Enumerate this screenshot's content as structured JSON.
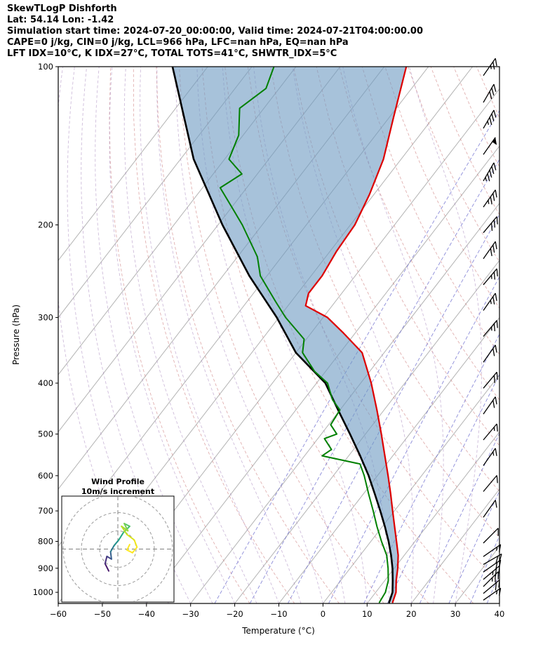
{
  "header": {
    "title": "SkewTLogP Dishforth",
    "location": "Lat: 54.14   Lon: -1.42",
    "times": "Simulation start time: 2024-07-20_00:00:00, Valid time: 2024-07-21T04:00:00.00",
    "indices1": "CAPE=0 j/kg, CIN=0 j/kg, LCL=966 hPa, LFC=nan hPa, EQ=nan hPa",
    "indices2": "LFT IDX=10°C, K IDX=27°C, TOTAL TOTS=41°C, SHWTR_IDX=5°C"
  },
  "chart_data": {
    "type": "skewt_logp_sounding",
    "station": "Dishforth",
    "lat": 54.14,
    "lon": -1.42,
    "xlabel": "Temperature (°C)",
    "ylabel": "Pressure (hPa)",
    "x_ticks": [
      -60,
      -50,
      -40,
      -30,
      -20,
      -10,
      0,
      10,
      20,
      30,
      40
    ],
    "x_tick_labels": [
      "−60",
      "−50",
      "−40",
      "−30",
      "−20",
      "−10",
      "0",
      "10",
      "20",
      "30",
      "40"
    ],
    "y_ticks": [
      100,
      200,
      300,
      400,
      500,
      600,
      700,
      800,
      900,
      1000
    ],
    "y_tick_labels": [
      "100",
      "200",
      "300",
      "400",
      "500",
      "600",
      "700",
      "800",
      "900",
      "1000"
    ],
    "x_range_c": [
      -60,
      40
    ],
    "pressure_range_hpa": [
      100,
      1050
    ],
    "y_scale": "log",
    "indices": {
      "cape_j_kg": 0,
      "cin_j_kg": 0,
      "lcl_hpa": 966,
      "lfc_hpa": "nan",
      "eq_hpa": "nan",
      "lifted_index_c": 10,
      "k_index_c": 27,
      "total_totals_c": 41,
      "showalter_index_c": 5
    },
    "temperature_profile": [
      [
        1045,
        15.6
      ],
      [
        1000,
        14.6
      ],
      [
        950,
        12.6
      ],
      [
        900,
        10.8
      ],
      [
        850,
        8.6
      ],
      [
        800,
        5.8
      ],
      [
        750,
        2.8
      ],
      [
        700,
        -0.4
      ],
      [
        650,
        -3.8
      ],
      [
        600,
        -7.6
      ],
      [
        550,
        -11.8
      ],
      [
        500,
        -16.4
      ],
      [
        450,
        -21.6
      ],
      [
        400,
        -27.6
      ],
      [
        350,
        -35.0
      ],
      [
        320,
        -43.0
      ],
      [
        300,
        -49.0
      ],
      [
        285,
        -56.0
      ],
      [
        270,
        -57.5
      ],
      [
        250,
        -57.5
      ],
      [
        225,
        -58.5
      ],
      [
        200,
        -59.0
      ],
      [
        175,
        -61.0
      ],
      [
        150,
        -64.0
      ],
      [
        125,
        -69.0
      ],
      [
        100,
        -75.0
      ]
    ],
    "dewpoint_profile": [
      [
        1045,
        12.6
      ],
      [
        1000,
        12.2
      ],
      [
        950,
        10.8
      ],
      [
        900,
        8.6
      ],
      [
        850,
        6.0
      ],
      [
        800,
        2.4
      ],
      [
        750,
        -1.2
      ],
      [
        700,
        -4.8
      ],
      [
        650,
        -8.8
      ],
      [
        600,
        -13.0
      ],
      [
        570,
        -16.0
      ],
      [
        550,
        -26.0
      ],
      [
        535,
        -25.0
      ],
      [
        510,
        -28.5
      ],
      [
        500,
        -26.5
      ],
      [
        480,
        -29.5
      ],
      [
        450,
        -30.0
      ],
      [
        430,
        -33.5
      ],
      [
        400,
        -37.5
      ],
      [
        380,
        -42.5
      ],
      [
        350,
        -48.5
      ],
      [
        330,
        -50.5
      ],
      [
        300,
        -58.5
      ],
      [
        280,
        -63.5
      ],
      [
        250,
        -71.5
      ],
      [
        230,
        -75.5
      ],
      [
        200,
        -84.5
      ],
      [
        185,
        -90.0
      ],
      [
        170,
        -96.0
      ],
      [
        160,
        -93.5
      ],
      [
        150,
        -99.0
      ],
      [
        135,
        -101.0
      ],
      [
        120,
        -105.5
      ],
      [
        110,
        -103.0
      ],
      [
        100,
        -105.0
      ]
    ],
    "parcel_profile": [
      [
        1045,
        14.8
      ],
      [
        1000,
        13.8
      ],
      [
        950,
        11.8
      ],
      [
        900,
        9.6
      ],
      [
        850,
        7.0
      ],
      [
        800,
        4.0
      ],
      [
        750,
        0.6
      ],
      [
        700,
        -3.2
      ],
      [
        650,
        -7.4
      ],
      [
        600,
        -12.0
      ],
      [
        550,
        -17.4
      ],
      [
        500,
        -23.5
      ],
      [
        450,
        -30.4
      ],
      [
        400,
        -38.0
      ],
      [
        350,
        -50.0
      ],
      [
        300,
        -60.5
      ],
      [
        250,
        -74.0
      ],
      [
        200,
        -89.0
      ],
      [
        150,
        -107.0
      ],
      [
        100,
        -128.0
      ]
    ],
    "series_style": {
      "temperature": "#dd0000",
      "dewpoint": "#008000",
      "parcel": "#000000",
      "shade_fill": "rgba(108,154,193,0.6)"
    },
    "background": {
      "isotherm_step_c": 10,
      "dry_adiabat_step_k": 10,
      "moist_adiabat_step_c": 5,
      "mixing_ratio_lines_g_kg": [
        0.5,
        1,
        2,
        4,
        7,
        10,
        16,
        24,
        32,
        40
      ],
      "colors": {
        "isotherm": "#b3b3b3",
        "dry_adiabat": "#cd7c7c",
        "moist_adiabat": "#a07cb8",
        "mixing_ratio": "#6666cc"
      }
    },
    "winds": [
      {
        "p": 104,
        "spd_kt": 25,
        "dir_deg": 35
      },
      {
        "p": 117,
        "spd_kt": 30,
        "dir_deg": 30
      },
      {
        "p": 131,
        "spd_kt": 35,
        "dir_deg": 30
      },
      {
        "p": 147,
        "spd_kt": 50,
        "dir_deg": 35
      },
      {
        "p": 165,
        "spd_kt": 45,
        "dir_deg": 30
      },
      {
        "p": 185,
        "spd_kt": 35,
        "dir_deg": 35
      },
      {
        "p": 207,
        "spd_kt": 30,
        "dir_deg": 40
      },
      {
        "p": 232,
        "spd_kt": 30,
        "dir_deg": 35
      },
      {
        "p": 260,
        "spd_kt": 25,
        "dir_deg": 40
      },
      {
        "p": 291,
        "spd_kt": 25,
        "dir_deg": 35
      },
      {
        "p": 326,
        "spd_kt": 25,
        "dir_deg": 40
      },
      {
        "p": 365,
        "spd_kt": 20,
        "dir_deg": 35
      },
      {
        "p": 409,
        "spd_kt": 20,
        "dir_deg": 40
      },
      {
        "p": 458,
        "spd_kt": 20,
        "dir_deg": 35
      },
      {
        "p": 513,
        "spd_kt": 15,
        "dir_deg": 40
      },
      {
        "p": 574,
        "spd_kt": 15,
        "dir_deg": 35
      },
      {
        "p": 643,
        "spd_kt": 10,
        "dir_deg": 40
      },
      {
        "p": 720,
        "spd_kt": 10,
        "dir_deg": 35
      },
      {
        "p": 806,
        "spd_kt": 10,
        "dir_deg": 45
      },
      {
        "p": 855,
        "spd_kt": 15,
        "dir_deg": 55
      },
      {
        "p": 885,
        "spd_kt": 20,
        "dir_deg": 60
      },
      {
        "p": 915,
        "spd_kt": 20,
        "dir_deg": 55
      },
      {
        "p": 945,
        "spd_kt": 25,
        "dir_deg": 50
      },
      {
        "p": 975,
        "spd_kt": 25,
        "dir_deg": 45
      },
      {
        "p": 1005,
        "spd_kt": 20,
        "dir_deg": 50
      },
      {
        "p": 1035,
        "spd_kt": 15,
        "dir_deg": 55
      }
    ],
    "hodograph": {
      "title": "Wind Profile",
      "subtitle": "10m/s increment",
      "rings_ms": [
        10,
        20,
        30
      ],
      "trace": [
        {
          "u": -5,
          "v": -12,
          "c": "#440154"
        },
        {
          "u": -7,
          "v": -8,
          "c": "#481a6c"
        },
        {
          "u": -6,
          "v": -4,
          "c": "#472f7d"
        },
        {
          "u": -3.5,
          "v": -5.5,
          "c": "#414487"
        },
        {
          "u": -4,
          "v": -1.5,
          "c": "#355f8d"
        },
        {
          "u": -2,
          "v": 2,
          "c": "#2a788e"
        },
        {
          "u": 0.5,
          "v": 5,
          "c": "#21918c"
        },
        {
          "u": 3,
          "v": 9,
          "c": "#22a884"
        },
        {
          "u": 6.5,
          "v": 12.5,
          "c": "#44bf70"
        },
        {
          "u": 3.5,
          "v": 14,
          "c": "#55c667"
        },
        {
          "u": 5.5,
          "v": 10,
          "c": "#7ad151"
        },
        {
          "u": 2,
          "v": 12.5,
          "c": "#9bd93c"
        },
        {
          "u": 5,
          "v": 8,
          "c": "#bddf26"
        },
        {
          "u": 9,
          "v": 5,
          "c": "#dae319"
        },
        {
          "u": 10.5,
          "v": 1,
          "c": "#f0e51b"
        },
        {
          "u": 8,
          "v": -2,
          "c": "#fde725"
        },
        {
          "u": 5,
          "v": -0.5,
          "c": "#fde725"
        },
        {
          "u": 6.5,
          "v": 2.5,
          "c": "#fde725"
        }
      ]
    }
  }
}
